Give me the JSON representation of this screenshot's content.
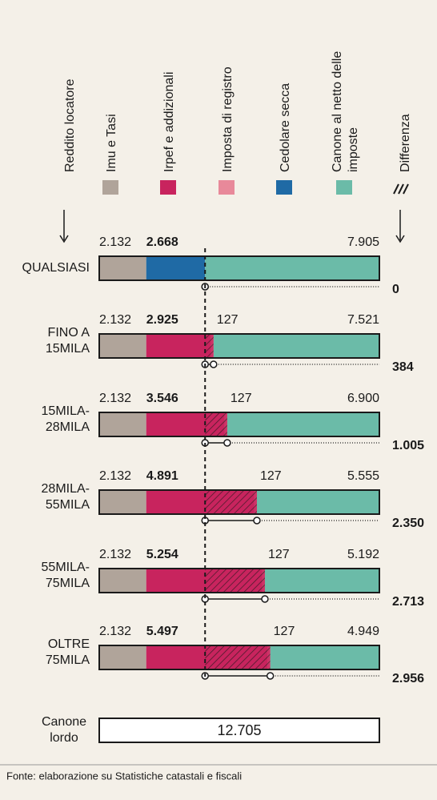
{
  "chart_data": {
    "type": "bar",
    "orientation": "horizontal",
    "stacked": true,
    "row_header": "Reddito locatore",
    "categories": [
      [
        "QUALSIASI"
      ],
      [
        "FINO A",
        "15MILA"
      ],
      [
        "15MILA-",
        "28MILA"
      ],
      [
        "28MILA-",
        "55MILA"
      ],
      [
        "55MILA-",
        "75MILA"
      ],
      [
        "OLTRE",
        "75MILA"
      ]
    ],
    "series": [
      {
        "name": "Imu e Tasi",
        "color": "#b0a49a",
        "label_color": "#a99f97",
        "values": [
          2132,
          2132,
          2132,
          2132,
          2132,
          2132
        ],
        "value_labels": [
          "2.132",
          "2.132",
          "2.132",
          "2.132",
          "2.132",
          "2.132"
        ]
      },
      {
        "name": "Irpef e addizionali",
        "color": "#c8245e",
        "label_color": "#b5234f",
        "values": [
          null,
          2925,
          3546,
          4891,
          5254,
          5497
        ],
        "value_labels": [
          null,
          "2.925",
          "3.546",
          "4.891",
          "5.254",
          "5.497"
        ]
      },
      {
        "name": "Imposta di registro",
        "color": "#e8899a",
        "label_color": "#e07f90",
        "values": [
          null,
          127,
          127,
          127,
          127,
          127
        ]
      },
      {
        "name": "Cedolare secca",
        "color": "#1f6aa5",
        "label_color": "#1a6aa0",
        "values": [
          2668,
          null,
          null,
          null,
          null,
          null
        ],
        "value_labels": [
          "2.668",
          null,
          null,
          null,
          null,
          null
        ]
      },
      {
        "name": "Canone al netto delle imposte",
        "color": "#6bbba8",
        "label_color": "#5aa890",
        "values": [
          7905,
          7521,
          6900,
          5555,
          5192,
          4949
        ],
        "value_labels": [
          "7.905",
          "7.521",
          "6.900",
          "5.555",
          "5.192",
          "4.949"
        ]
      }
    ],
    "difference": {
      "name": "Differenza",
      "values": [
        0,
        384,
        1005,
        2350,
        2713,
        2956
      ],
      "value_labels": [
        "0",
        "384",
        "1.005",
        "2.350",
        "2.713",
        "2.956"
      ]
    },
    "gross": {
      "label": [
        "Canone",
        "lordo"
      ],
      "value": 12705,
      "value_label": "12.705"
    },
    "xlim": [
      0,
      12705
    ],
    "source": "Fonte: elaborazione su Statistiche catastali e fiscali"
  }
}
